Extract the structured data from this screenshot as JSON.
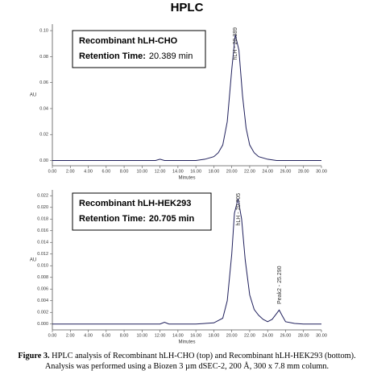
{
  "heading": "HPLC",
  "chart_data": [
    {
      "type": "line",
      "xlabel": "Minutes",
      "ylabel": "AU",
      "box": {
        "name": "Recombinant hLH-CHO",
        "retention_label": "Retention Time:",
        "retention_value": "20.389 min"
      },
      "annotations": [
        "hLH - 20.389"
      ],
      "xlim": [
        0,
        30
      ],
      "ylim": [
        -0.004,
        0.105
      ],
      "xticks": [
        {
          "value": 0,
          "label": "0.00"
        },
        {
          "value": 2,
          "label": "2.00"
        },
        {
          "value": 4,
          "label": "4.00"
        },
        {
          "value": 6,
          "label": "6.00"
        },
        {
          "value": 8,
          "label": "8.00"
        },
        {
          "value": 10,
          "label": "10.00"
        },
        {
          "value": 12,
          "label": "12.00"
        },
        {
          "value": 14,
          "label": "14.00"
        },
        {
          "value": 16,
          "label": "16.00"
        },
        {
          "value": 18,
          "label": "18.00"
        },
        {
          "value": 20,
          "label": "20.00"
        },
        {
          "value": 22,
          "label": "22.00"
        },
        {
          "value": 24,
          "label": "24.00"
        },
        {
          "value": 26,
          "label": "26.00"
        },
        {
          "value": 28,
          "label": "28.00"
        },
        {
          "value": 30,
          "label": "30.00"
        }
      ],
      "yticks": [
        {
          "value": 0,
          "label": "0.00"
        },
        {
          "value": 0.02,
          "label": "0.02"
        },
        {
          "value": 0.04,
          "label": "0.04"
        },
        {
          "value": 0.06,
          "label": "0.06"
        },
        {
          "value": 0.08,
          "label": "0.08"
        },
        {
          "value": 0.1,
          "label": "0.10"
        }
      ],
      "series": [
        {
          "color": "#1f1f5c",
          "x": [
            0,
            2,
            4,
            6,
            8,
            10,
            11.5,
            12,
            12.5,
            14,
            16,
            17,
            18,
            18.5,
            19,
            19.5,
            20,
            20.389,
            20.8,
            21.2,
            21.6,
            22,
            22.5,
            23,
            24,
            25,
            26,
            28,
            30
          ],
          "values": [
            0,
            0,
            0,
            0,
            0,
            0,
            0,
            0.001,
            0,
            0,
            0,
            0.001,
            0.003,
            0.006,
            0.012,
            0.03,
            0.07,
            0.097,
            0.085,
            0.05,
            0.025,
            0.012,
            0.006,
            0.003,
            0.001,
            0,
            0,
            0,
            0
          ]
        }
      ]
    },
    {
      "type": "line",
      "xlabel": "Minutes",
      "ylabel": "AU",
      "box": {
        "name": "Recombinant hLH-HEK293",
        "retention_label": "Retention Time:",
        "retention_value": "20.705 min"
      },
      "annotations": [
        "hLH - 20.705",
        "Peak2 - 25.290"
      ],
      "xlim": [
        0,
        30
      ],
      "ylim": [
        -0.001,
        0.023
      ],
      "xticks": [
        {
          "value": 0,
          "label": "0.00"
        },
        {
          "value": 2,
          "label": "2.00"
        },
        {
          "value": 4,
          "label": "4.00"
        },
        {
          "value": 6,
          "label": "6.00"
        },
        {
          "value": 8,
          "label": "8.00"
        },
        {
          "value": 10,
          "label": "10.00"
        },
        {
          "value": 12,
          "label": "12.00"
        },
        {
          "value": 14,
          "label": "14.00"
        },
        {
          "value": 16,
          "label": "16.00"
        },
        {
          "value": 18,
          "label": "18.00"
        },
        {
          "value": 20,
          "label": "20.00"
        },
        {
          "value": 22,
          "label": "22.00"
        },
        {
          "value": 24,
          "label": "24.00"
        },
        {
          "value": 26,
          "label": "26.00"
        },
        {
          "value": 28,
          "label": "28.00"
        },
        {
          "value": 30,
          "label": "30.00"
        }
      ],
      "yticks": [
        {
          "value": 0,
          "label": "0.000"
        },
        {
          "value": 0.002,
          "label": "0.002"
        },
        {
          "value": 0.004,
          "label": "0.004"
        },
        {
          "value": 0.006,
          "label": "0.006"
        },
        {
          "value": 0.008,
          "label": "0.008"
        },
        {
          "value": 0.01,
          "label": "0.010"
        },
        {
          "value": 0.012,
          "label": "0.012"
        },
        {
          "value": 0.014,
          "label": "0.014"
        },
        {
          "value": 0.016,
          "label": "0.016"
        },
        {
          "value": 0.018,
          "label": "0.018"
        },
        {
          "value": 0.02,
          "label": "0.020"
        },
        {
          "value": 0.022,
          "label": "0.022"
        }
      ],
      "series": [
        {
          "color": "#1f1f5c",
          "x": [
            0,
            2,
            4,
            6,
            8,
            10,
            12,
            12.5,
            13,
            14,
            16,
            18,
            19,
            19.5,
            20,
            20.3,
            20.705,
            21.1,
            21.5,
            22,
            22.5,
            23,
            23.5,
            24,
            24.5,
            25,
            25.29,
            25.6,
            26,
            27,
            28,
            30
          ],
          "values": [
            0,
            0,
            0,
            0,
            0,
            0,
            0,
            0.0003,
            0,
            0,
            0,
            0.0002,
            0.001,
            0.004,
            0.012,
            0.019,
            0.0215,
            0.018,
            0.011,
            0.005,
            0.0025,
            0.0015,
            0.0008,
            0.0004,
            0.0008,
            0.0018,
            0.0024,
            0.0015,
            0.0004,
            0.0001,
            0,
            0
          ]
        }
      ]
    }
  ],
  "caption": {
    "label": "Figure 3.",
    "text": "HPLC analysis of Recombinant hLH-CHO (top) and Recombinant hLH-HEK293 (bottom). Analysis was performed using a Biozen 3 µm dSEC-2, 200 Å, 300 x 7.8 mm column."
  }
}
